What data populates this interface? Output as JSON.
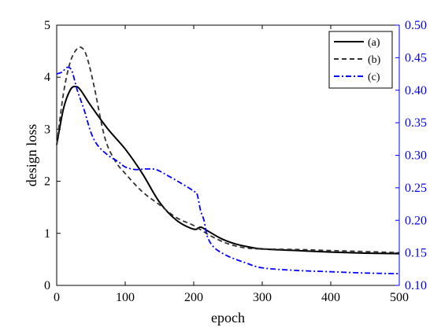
{
  "chart_data": {
    "type": "line",
    "xlabel": "epoch",
    "ylabel": "design loss",
    "xlim": [
      0,
      500
    ],
    "ylim": [
      0,
      5
    ],
    "y2lim": [
      0.1,
      0.5
    ],
    "xticks": [
      "0",
      "100",
      "200",
      "300",
      "400",
      "500"
    ],
    "yticks": [
      "0",
      "1",
      "2",
      "3",
      "4",
      "5"
    ],
    "y2ticks": [
      "0.10",
      "0.15",
      "0.20",
      "0.25",
      "0.30",
      "0.35",
      "0.40",
      "0.45",
      "0.50"
    ],
    "grid": false,
    "legend_position": "top-right",
    "series": [
      {
        "name": "(a)",
        "axis": "left",
        "color": "#000000",
        "dash": "solid",
        "x": [
          0,
          10,
          20,
          28,
          35,
          50,
          75,
          100,
          125,
          150,
          175,
          200,
          210,
          220,
          240,
          260,
          280,
          300,
          350,
          400,
          450,
          500
        ],
        "y": [
          2.7,
          3.4,
          3.76,
          3.82,
          3.75,
          3.45,
          3.0,
          2.62,
          2.15,
          1.6,
          1.25,
          1.08,
          1.12,
          1.05,
          0.9,
          0.8,
          0.74,
          0.7,
          0.67,
          0.64,
          0.62,
          0.61
        ]
      },
      {
        "name": "(b)",
        "axis": "left",
        "color": "#333333",
        "dash": "dashed",
        "x": [
          0,
          10,
          20,
          30,
          38,
          45,
          55,
          70,
          85,
          100,
          125,
          150,
          175,
          200,
          225,
          250,
          275,
          300,
          350,
          400,
          450,
          500
        ],
        "y": [
          2.7,
          3.7,
          4.3,
          4.55,
          4.55,
          4.35,
          3.8,
          2.85,
          2.4,
          2.15,
          1.8,
          1.55,
          1.3,
          1.15,
          0.95,
          0.8,
          0.72,
          0.7,
          0.69,
          0.67,
          0.65,
          0.63
        ]
      },
      {
        "name": "(c)",
        "axis": "right",
        "color": "#0000ff",
        "dash": "dashdot",
        "x": [
          0,
          8,
          15,
          22,
          30,
          40,
          50,
          60,
          75,
          90,
          100,
          115,
          130,
          145,
          160,
          180,
          200,
          205,
          210,
          215,
          220,
          230,
          250,
          275,
          300,
          350,
          400,
          450,
          500
        ],
        "y": [
          0.425,
          0.428,
          0.435,
          0.43,
          0.4,
          0.37,
          0.335,
          0.315,
          0.3,
          0.29,
          0.282,
          0.278,
          0.279,
          0.278,
          0.27,
          0.258,
          0.245,
          0.24,
          0.215,
          0.2,
          0.175,
          0.158,
          0.145,
          0.135,
          0.127,
          0.123,
          0.121,
          0.119,
          0.118
        ]
      }
    ]
  }
}
